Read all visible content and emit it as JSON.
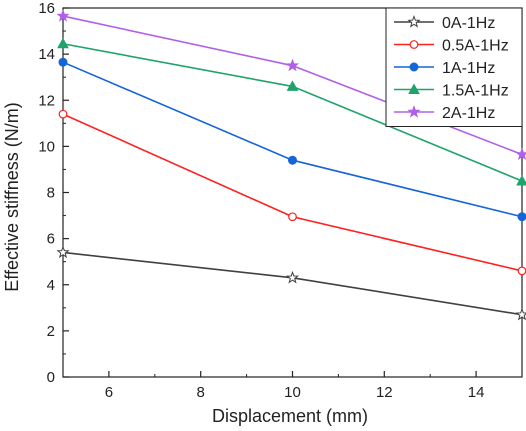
{
  "chart_data": {
    "type": "line",
    "title": "",
    "xlabel": "Displacement (mm)",
    "ylabel": "Effective stiffness (N/m)",
    "xlim": [
      5,
      15
    ],
    "ylim": [
      0,
      16
    ],
    "xticks": [
      6,
      8,
      10,
      12,
      14
    ],
    "yticks": [
      0,
      2,
      4,
      6,
      8,
      10,
      12,
      14,
      16
    ],
    "grid": false,
    "legend_position": "top-right",
    "x": [
      5,
      10,
      15
    ],
    "series": [
      {
        "name": "0A-1Hz",
        "values": [
          5.4,
          4.3,
          2.7
        ],
        "color": "#404040",
        "marker": "star-open"
      },
      {
        "name": "0.5A-1Hz",
        "values": [
          11.4,
          6.95,
          4.6
        ],
        "color": "#ff2020",
        "marker": "circle-open"
      },
      {
        "name": "1A-1Hz",
        "values": [
          13.65,
          9.4,
          6.95
        ],
        "color": "#1565d8",
        "marker": "circle-filled"
      },
      {
        "name": "1.5A-1Hz",
        "values": [
          14.45,
          12.6,
          8.5
        ],
        "color": "#1ea36a",
        "marker": "triangle-filled"
      },
      {
        "name": "2A-1Hz",
        "values": [
          15.65,
          13.5,
          9.65
        ],
        "color": "#b060e8",
        "marker": "star-filled"
      }
    ]
  }
}
